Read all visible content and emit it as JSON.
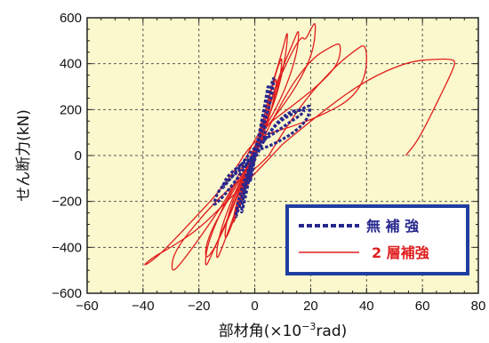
{
  "chart_data": {
    "type": "line",
    "title": "",
    "xlabel_main": "部材角(×10",
    "xlabel_sup": "−3",
    "xlabel_unit": "rad)",
    "ylabel": "せん断力(kN)",
    "xlim": [
      -60,
      80
    ],
    "ylim": [
      -600,
      600
    ],
    "x_ticks": [
      -60,
      -40,
      -20,
      0,
      20,
      40,
      60,
      80
    ],
    "y_ticks": [
      600,
      400,
      200,
      0,
      -200,
      -400,
      -600
    ],
    "x_tick_labels": [
      "−60",
      "−40",
      "−20",
      "0",
      "20",
      "40",
      "60",
      "80"
    ],
    "y_tick_labels": [
      "600",
      "400",
      "200",
      "0",
      "−200",
      "−400",
      "−600"
    ],
    "grid": true,
    "plot_background": "#fbf8cd",
    "legend": {
      "position": "bottom-right",
      "border_color": "#1f3fa0",
      "entries": [
        {
          "name": "無 補 強",
          "color": "#28288e",
          "style": "dashed"
        },
        {
          "name": "2 層補強",
          "color": "#e01e1e",
          "style": "solid"
        }
      ]
    },
    "series": [
      {
        "name": "2 層補強",
        "color": "#e01e1e",
        "loops": [
          [
            [
              0,
              0
            ],
            [
              1,
              60
            ],
            [
              2,
              120
            ],
            [
              3,
              170
            ],
            [
              4,
              120
            ],
            [
              2,
              50
            ],
            [
              0,
              10
            ],
            [
              -1,
              -50
            ],
            [
              -2,
              -110
            ],
            [
              -3,
              -150
            ],
            [
              -2,
              -90
            ],
            [
              0,
              -20
            ],
            [
              1,
              20
            ]
          ],
          [
            [
              1,
              20
            ],
            [
              3,
              120
            ],
            [
              5,
              220
            ],
            [
              6,
              270
            ],
            [
              5,
              180
            ],
            [
              3,
              80
            ],
            [
              0,
              10
            ],
            [
              -2,
              -80
            ],
            [
              -4,
              -180
            ],
            [
              -6,
              -240
            ],
            [
              -5,
              -160
            ],
            [
              -2,
              -60
            ],
            [
              0,
              0
            ]
          ],
          [
            [
              0,
              0
            ],
            [
              3,
              150
            ],
            [
              6,
              290
            ],
            [
              8,
              350
            ],
            [
              7,
              250
            ],
            [
              4,
              120
            ],
            [
              0,
              20
            ],
            [
              -3,
              -110
            ],
            [
              -6,
              -240
            ],
            [
              -8,
              -310
            ],
            [
              -7,
              -220
            ],
            [
              -3,
              -80
            ],
            [
              0,
              10
            ]
          ],
          [
            [
              0,
              10
            ],
            [
              4,
              200
            ],
            [
              8,
              380
            ],
            [
              10,
              440
            ],
            [
              9,
              330
            ],
            [
              5,
              160
            ],
            [
              0,
              30
            ],
            [
              -4,
              -140
            ],
            [
              -8,
              -300
            ],
            [
              -11,
              -380
            ],
            [
              -10,
              -270
            ],
            [
              -5,
              -110
            ],
            [
              0,
              0
            ]
          ],
          [
            [
              0,
              0
            ],
            [
              5,
              260
            ],
            [
              10,
              460
            ],
            [
              12,
              560
            ],
            [
              11,
              420
            ],
            [
              7,
              220
            ],
            [
              0,
              40
            ],
            [
              -5,
              -180
            ],
            [
              -11,
              -380
            ],
            [
              -14,
              -470
            ],
            [
              -13,
              -350
            ],
            [
              -7,
              -150
            ],
            [
              0,
              0
            ]
          ],
          [
            [
              0,
              0
            ],
            [
              7,
              300
            ],
            [
              14,
              500
            ],
            [
              16,
              560
            ],
            [
              15,
              430
            ],
            [
              9,
              230
            ],
            [
              0,
              50
            ],
            [
              -7,
              -200
            ],
            [
              -15,
              -420
            ],
            [
              -18,
              -500
            ],
            [
              -17,
              -380
            ],
            [
              -9,
              -160
            ],
            [
              0,
              0
            ]
          ],
          [
            [
              0,
              0
            ],
            [
              6,
              260
            ],
            [
              14,
              470
            ],
            [
              17,
              520
            ],
            [
              18,
              500
            ],
            [
              20,
              550
            ],
            [
              22,
              590
            ],
            [
              21,
              450
            ],
            [
              15,
              300
            ],
            [
              6,
              150
            ],
            [
              0,
              60
            ],
            [
              -6,
              -180
            ],
            [
              -14,
              -400
            ],
            [
              -18,
              -460
            ],
            [
              -17,
              -360
            ],
            [
              -10,
              -200
            ],
            [
              0,
              0
            ]
          ],
          [
            [
              0,
              0
            ],
            [
              10,
              250
            ],
            [
              20,
              420
            ],
            [
              28,
              480
            ],
            [
              31,
              490
            ],
            [
              30,
              400
            ],
            [
              24,
              320
            ],
            [
              15,
              230
            ],
            [
              5,
              140
            ],
            [
              0,
              80
            ],
            [
              -8,
              -150
            ],
            [
              -18,
              -330
            ],
            [
              -27,
              -480
            ],
            [
              -30,
              -510
            ],
            [
              -29,
              -420
            ],
            [
              -20,
              -280
            ],
            [
              -10,
              -150
            ],
            [
              0,
              -60
            ],
            [
              5,
              0
            ]
          ],
          [
            [
              5,
              0
            ],
            [
              15,
              200
            ],
            [
              28,
              380
            ],
            [
              36,
              460
            ],
            [
              40,
              490
            ],
            [
              40,
              350
            ],
            [
              35,
              250
            ],
            [
              25,
              180
            ],
            [
              12,
              120
            ],
            [
              0,
              80
            ],
            [
              -10,
              -120
            ],
            [
              -22,
              -280
            ],
            [
              -33,
              -420
            ],
            [
              -38,
              -470
            ],
            [
              -40,
              -480
            ],
            [
              -36,
              -440
            ],
            [
              -30,
              -400
            ],
            [
              -20,
              -320
            ],
            [
              -10,
              -200
            ],
            [
              0,
              -80
            ],
            [
              10,
              50
            ]
          ],
          [
            [
              10,
              50
            ],
            [
              25,
              200
            ],
            [
              40,
              330
            ],
            [
              55,
              410
            ],
            [
              65,
              420
            ],
            [
              70,
              420
            ],
            [
              72,
              410
            ],
            [
              70,
              350
            ],
            [
              66,
              250
            ],
            [
              62,
              150
            ],
            [
              58,
              60
            ],
            [
              54,
              0
            ]
          ]
        ]
      },
      {
        "name": "無補強",
        "color": "#28288e",
        "loops": [
          [
            [
              0,
              0
            ],
            [
              2,
              80
            ],
            [
              3,
              150
            ],
            [
              4,
              100
            ],
            [
              2,
              30
            ],
            [
              0,
              -10
            ],
            [
              -1,
              -80
            ],
            [
              -2,
              -130
            ],
            [
              -1,
              -60
            ],
            [
              0,
              0
            ]
          ],
          [
            [
              0,
              0
            ],
            [
              2,
              120
            ],
            [
              4,
              250
            ],
            [
              5,
              320
            ],
            [
              4,
              220
            ],
            [
              2,
              100
            ],
            [
              0,
              20
            ],
            [
              -2,
              -100
            ],
            [
              -4,
              -220
            ],
            [
              -5,
              -260
            ],
            [
              -4,
              -170
            ],
            [
              -2,
              -60
            ],
            [
              0,
              0
            ]
          ],
          [
            [
              0,
              0
            ],
            [
              3,
              180
            ],
            [
              6,
              310
            ],
            [
              7,
              350
            ],
            [
              6,
              250
            ],
            [
              3,
              120
            ],
            [
              0,
              30
            ],
            [
              -3,
              -120
            ],
            [
              -6,
              -240
            ],
            [
              -7,
              -280
            ],
            [
              -6,
              -200
            ],
            [
              -3,
              -80
            ],
            [
              0,
              0
            ]
          ],
          [
            [
              0,
              0
            ],
            [
              5,
              100
            ],
            [
              10,
              160
            ],
            [
              15,
              190
            ],
            [
              18,
              210
            ],
            [
              20,
              220
            ],
            [
              19,
              160
            ],
            [
              15,
              110
            ],
            [
              10,
              70
            ],
            [
              5,
              40
            ],
            [
              0,
              20
            ],
            [
              -5,
              -80
            ],
            [
              -10,
              -160
            ],
            [
              -13,
              -200
            ],
            [
              -15,
              -220
            ],
            [
              -13,
              -150
            ],
            [
              -8,
              -90
            ],
            [
              -3,
              -40
            ],
            [
              0,
              0
            ]
          ],
          [
            [
              0,
              0
            ],
            [
              6,
              120
            ],
            [
              12,
              190
            ],
            [
              17,
              200
            ],
            [
              18,
              190
            ],
            [
              12,
              140
            ],
            [
              6,
              90
            ],
            [
              0,
              40
            ],
            [
              -6,
              -60
            ],
            [
              -10,
              -120
            ],
            [
              -12,
              -150
            ],
            [
              -10,
              -90
            ],
            [
              -4,
              -30
            ],
            [
              0,
              0
            ]
          ]
        ]
      }
    ]
  }
}
